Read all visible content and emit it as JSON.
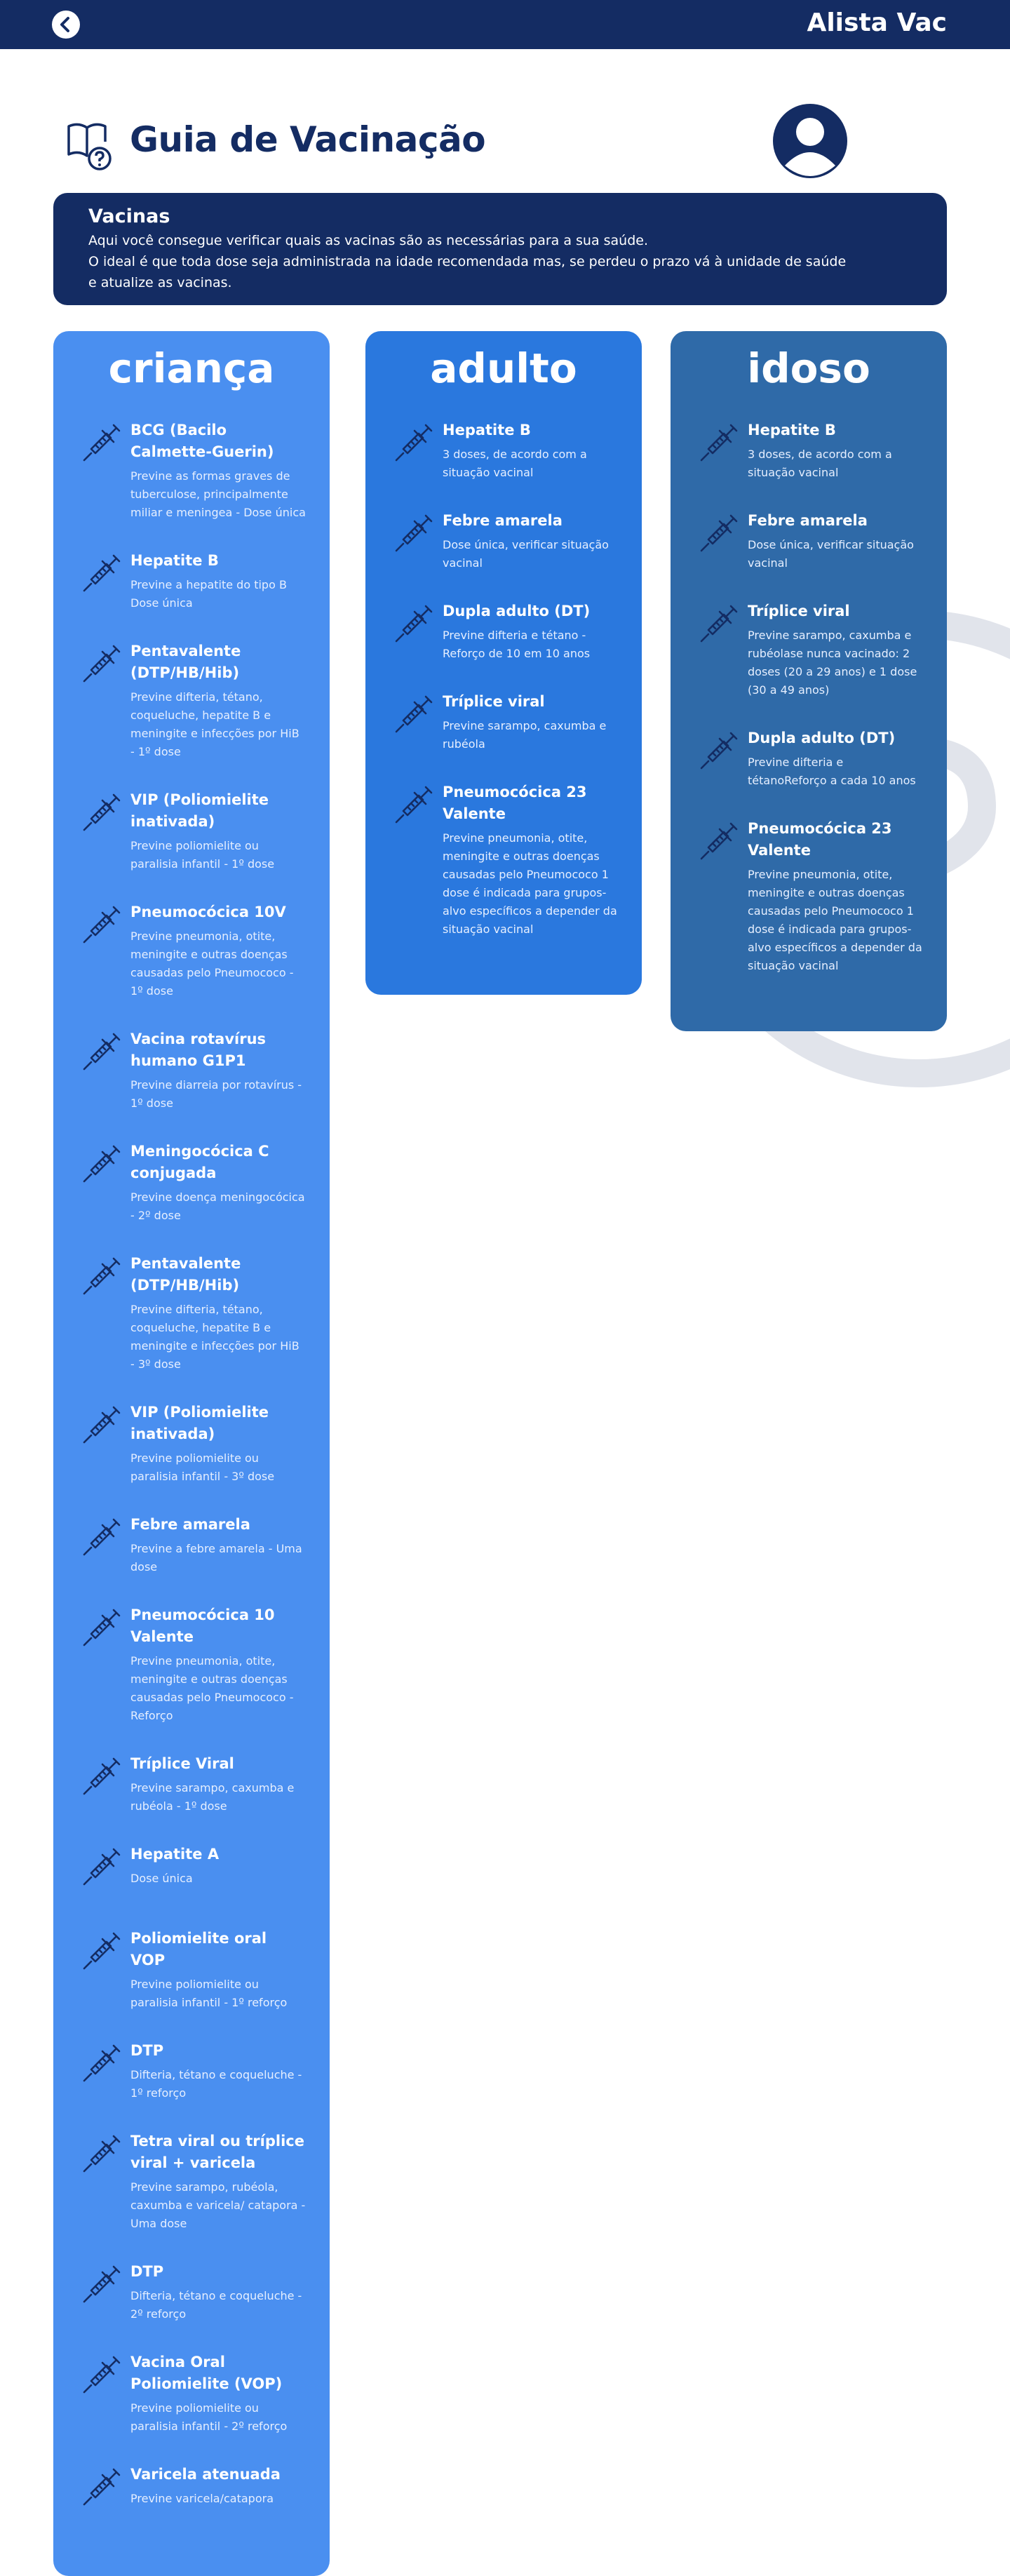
{
  "header": {
    "title": "Alista Vac"
  },
  "page": {
    "title": "Guia de Vacinação"
  },
  "info": {
    "title": "Vacinas",
    "lines": [
      "Aqui você consegue verificar quais as vacinas são as necessárias para a sua saúde.",
      "O ideal é que toda dose seja administrada na idade recomendada mas, se perdeu o prazo vá à unidade de saúde",
      "e atualize as vacinas."
    ]
  },
  "columns": [
    {
      "title": "criança",
      "items": [
        {
          "name": "BCG (Bacilo Calmette-Guerin)",
          "description": "Previne as formas graves de tuberculose, principalmente miliar e meningea - Dose única"
        },
        {
          "name": "Hepatite B",
          "description": "Previne a hepatite do tipo B Dose única"
        },
        {
          "name": "Pentavalente (DTP/HB/Hib)",
          "description": "Previne difteria, tétano, coqueluche, hepatite B e meningite e infecções por HiB - 1º dose"
        },
        {
          "name": "VIP (Poliomielite inativada)",
          "description": "Previne poliomielite ou paralisia infantil - 1º dose"
        },
        {
          "name": "Pneumocócica 10V",
          "description": "Previne pneumonia, otite, meningite e outras doenças causadas pelo Pneumococo - 1º dose"
        },
        {
          "name": "Vacina rotavírus humano G1P1",
          "description": "Previne diarreia por rotavírus - 1º dose"
        },
        {
          "name": "Meningocócica C conjugada",
          "description": "Previne doença meningocócica - 2º dose"
        },
        {
          "name": "Pentavalente (DTP/HB/Hib)",
          "description": "Previne difteria, tétano, coqueluche, hepatite B e meningite e infecções por HiB - 3º dose"
        },
        {
          "name": "VIP (Poliomielite inativada)",
          "description": "Previne poliomielite ou paralisia infantil - 3º dose"
        },
        {
          "name": "Febre amarela",
          "description": "Previne a febre amarela - Uma dose"
        },
        {
          "name": "Pneumocócica 10 Valente",
          "description": "Previne pneumonia, otite, meningite e outras doenças causadas pelo Pneumococo - Reforço"
        },
        {
          "name": "Tríplice Viral",
          "description": "Previne sarampo, caxumba e rubéola - 1º dose"
        },
        {
          "name": "Hepatite A",
          "description": "Dose única"
        },
        {
          "name": "Poliomielite oral VOP",
          "description": "Previne poliomielite ou paralisia infantil - 1º reforço"
        },
        {
          "name": "DTP",
          "description": "Difteria, tétano e coqueluche - 1º reforço"
        },
        {
          "name": "Tetra viral ou tríplice viral + varicela",
          "description": "Previne sarampo, rubéola, caxumba e varicela/ catapora - Uma dose"
        },
        {
          "name": "DTP",
          "description": "Difteria, tétano e coqueluche - 2º reforço"
        },
        {
          "name": "Vacina Oral Poliomielite (VOP)",
          "description": "Previne poliomielite ou paralisia infantil - 2º reforço"
        },
        {
          "name": "Varicela atenuada",
          "description": "Previne varicela/catapora"
        }
      ]
    },
    {
      "title": "adulto",
      "items": [
        {
          "name": "Hepatite B",
          "description": "3 doses, de acordo com a situação vacinal"
        },
        {
          "name": "Febre amarela",
          "description": "Dose única, verificar situação vacinal"
        },
        {
          "name": "Dupla adulto (DT)",
          "description": "Previne difteria e tétano - Reforço de 10 em 10 anos"
        },
        {
          "name": "Tríplice viral",
          "description": "Previne sarampo, caxumba e rubéola"
        },
        {
          "name": "Pneumocócica 23 Valente",
          "description": "Previne pneumonia, otite, meningite e outras doenças causadas pelo Pneumococo 1 dose é indicada para grupos-alvo específicos a depender da situação vacinal"
        }
      ]
    },
    {
      "title": "idoso",
      "items": [
        {
          "name": "Hepatite B",
          "description": "3 doses, de acordo com a situação vacinal"
        },
        {
          "name": "Febre amarela",
          "description": "Dose única, verificar situação vacinal"
        },
        {
          "name": "Tríplice viral",
          "description": "Previne sarampo, caxumba e rubéolase nunca vacinado: 2 doses (20 a 29 anos) e 1 dose (30 a 49 anos)"
        },
        {
          "name": "Dupla adulto (DT)",
          "description": "Previne difteria e tétanoReforço a cada 10 anos"
        },
        {
          "name": "Pneumocócica 23 Valente",
          "description": "Previne pneumonia, otite, meningite e outras doenças causadas pelo Pneumococo 1 dose é indicada para grupos-alvo específicos a depender da situação vacinal"
        }
      ]
    }
  ]
}
